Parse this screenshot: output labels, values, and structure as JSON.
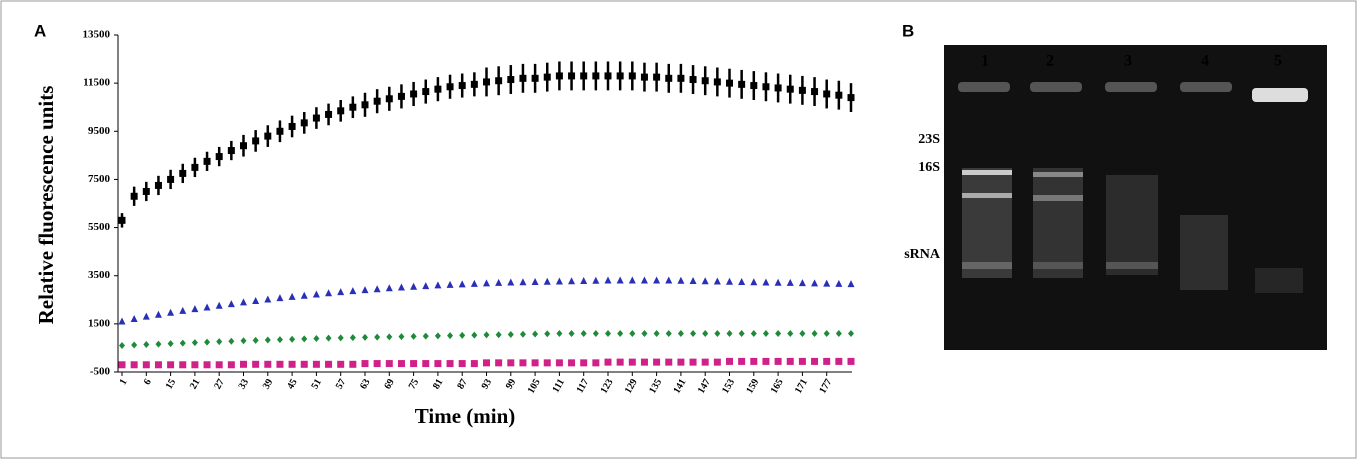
{
  "chart_data": {
    "type": "scatter",
    "panel": "A",
    "y_label": "Relative fluorescence units",
    "x_label": "Time (min)",
    "categories": [
      "1",
      null,
      "6",
      null,
      "15",
      null,
      "21",
      null,
      "27",
      null,
      "33",
      null,
      "39",
      null,
      "45",
      null,
      "51",
      null,
      "57",
      null,
      "63",
      null,
      "69",
      null,
      "75",
      null,
      "81",
      null,
      "87",
      null,
      "93",
      null,
      "99",
      null,
      "105",
      null,
      "111",
      null,
      "117",
      null,
      "123",
      null,
      "129",
      null,
      "135",
      null,
      "141",
      null,
      "147",
      null,
      "153",
      null,
      "159",
      null,
      "165",
      null,
      "171",
      null,
      "177",
      null,
      null
    ],
    "ylim": [
      -500,
      13500
    ],
    "yticks": [
      -500,
      1500,
      3500,
      5500,
      7500,
      9500,
      11500,
      13500
    ],
    "series": [
      {
        "color": "#000000",
        "marker": "square",
        "values": [
          5800,
          6800,
          7000,
          7250,
          7500,
          7750,
          8000,
          8250,
          8450,
          8700,
          8900,
          9100,
          9300,
          9500,
          9700,
          9850,
          10050,
          10200,
          10350,
          10500,
          10600,
          10750,
          10850,
          10950,
          11050,
          11150,
          11250,
          11350,
          11400,
          11450,
          11550,
          11600,
          11650,
          11700,
          11700,
          11750,
          11800,
          11800,
          11800,
          11800,
          11800,
          11800,
          11800,
          11750,
          11750,
          11700,
          11700,
          11650,
          11600,
          11550,
          11500,
          11450,
          11400,
          11350,
          11300,
          11250,
          11200,
          11150,
          11050,
          11000,
          10900
        ],
        "errors": [
          300,
          400,
          400,
          400,
          400,
          400,
          400,
          400,
          400,
          400,
          450,
          450,
          450,
          450,
          450,
          450,
          450,
          450,
          450,
          450,
          500,
          500,
          500,
          500,
          500,
          500,
          500,
          500,
          500,
          500,
          600,
          600,
          600,
          600,
          600,
          600,
          600,
          600,
          600,
          600,
          600,
          600,
          600,
          600,
          600,
          600,
          600,
          600,
          600,
          600,
          600,
          600,
          600,
          600,
          600,
          600,
          600,
          600,
          600,
          600,
          600
        ]
      },
      {
        "color": "#2a2fb8",
        "marker": "triangle",
        "values": [
          1600,
          1700,
          1800,
          1880,
          1960,
          2040,
          2110,
          2180,
          2250,
          2320,
          2390,
          2450,
          2510,
          2570,
          2620,
          2670,
          2720,
          2770,
          2820,
          2860,
          2900,
          2940,
          2980,
          3010,
          3040,
          3070,
          3100,
          3120,
          3140,
          3160,
          3180,
          3200,
          3220,
          3230,
          3240,
          3250,
          3260,
          3270,
          3280,
          3290,
          3300,
          3300,
          3300,
          3300,
          3300,
          3300,
          3290,
          3280,
          3270,
          3260,
          3250,
          3240,
          3230,
          3220,
          3210,
          3200,
          3190,
          3180,
          3170,
          3160,
          3150
        ]
      },
      {
        "color": "#1f8a3a",
        "marker": "diamond",
        "values": [
          600,
          620,
          640,
          660,
          680,
          700,
          720,
          740,
          760,
          780,
          800,
          815,
          830,
          845,
          860,
          875,
          890,
          905,
          920,
          930,
          940,
          950,
          960,
          970,
          980,
          990,
          1000,
          1010,
          1020,
          1030,
          1040,
          1050,
          1060,
          1070,
          1080,
          1090,
          1100,
          1100,
          1100,
          1100,
          1100,
          1100,
          1100,
          1100,
          1100,
          1100,
          1100,
          1100,
          1100,
          1100,
          1100,
          1100,
          1100,
          1100,
          1100,
          1100,
          1100,
          1100,
          1100,
          1100,
          1100
        ]
      },
      {
        "color": "#d0208a",
        "marker": "square",
        "values": [
          -200,
          -200,
          -200,
          -200,
          -200,
          -200,
          -200,
          -200,
          -200,
          -200,
          -180,
          -180,
          -180,
          -180,
          -180,
          -180,
          -180,
          -180,
          -180,
          -180,
          -150,
          -150,
          -150,
          -150,
          -150,
          -150,
          -150,
          -150,
          -150,
          -150,
          -120,
          -120,
          -120,
          -120,
          -120,
          -120,
          -120,
          -120,
          -120,
          -120,
          -90,
          -90,
          -90,
          -90,
          -90,
          -90,
          -90,
          -90,
          -90,
          -90,
          -60,
          -60,
          -60,
          -60,
          -60,
          -60,
          -60,
          -60,
          -60,
          -60,
          -60
        ]
      }
    ]
  },
  "gel": {
    "panel": "B",
    "lanes": [
      "1",
      "2",
      "3",
      "4",
      "5"
    ],
    "markers": [
      "23S",
      "16S",
      "sRNA"
    ]
  }
}
